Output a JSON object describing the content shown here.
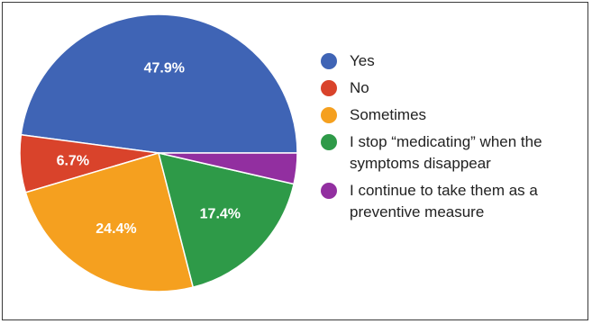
{
  "chart_data": {
    "type": "pie",
    "start_angle_deg": 90,
    "direction": "counterclockwise",
    "slices": [
      {
        "label": "Yes",
        "value": 47.9,
        "display": "47.9%",
        "color": "#3f64b5"
      },
      {
        "label": "No",
        "value": 6.7,
        "display": "6.7%",
        "color": "#d9432b"
      },
      {
        "label": "Sometimes",
        "value": 24.4,
        "display": "24.4%",
        "color": "#f5a01f"
      },
      {
        "label": "I stop “medicating” when the symptoms disappear",
        "value": 17.4,
        "display": "17.4%",
        "color": "#2e9a48"
      },
      {
        "label": "I continue to take them as a preventive measure",
        "value": 3.6,
        "display": "",
        "color": "#922fa0"
      }
    ],
    "legend": {
      "placement": "right",
      "entries": [
        {
          "lines": [
            "Yes"
          ]
        },
        {
          "lines": [
            "No"
          ]
        },
        {
          "lines": [
            "Sometimes"
          ]
        },
        {
          "lines": [
            "I stop “medicating” when the",
            "symptoms disappear"
          ]
        },
        {
          "lines": [
            "I continue to take them as a",
            "preventive measure"
          ]
        }
      ]
    }
  }
}
